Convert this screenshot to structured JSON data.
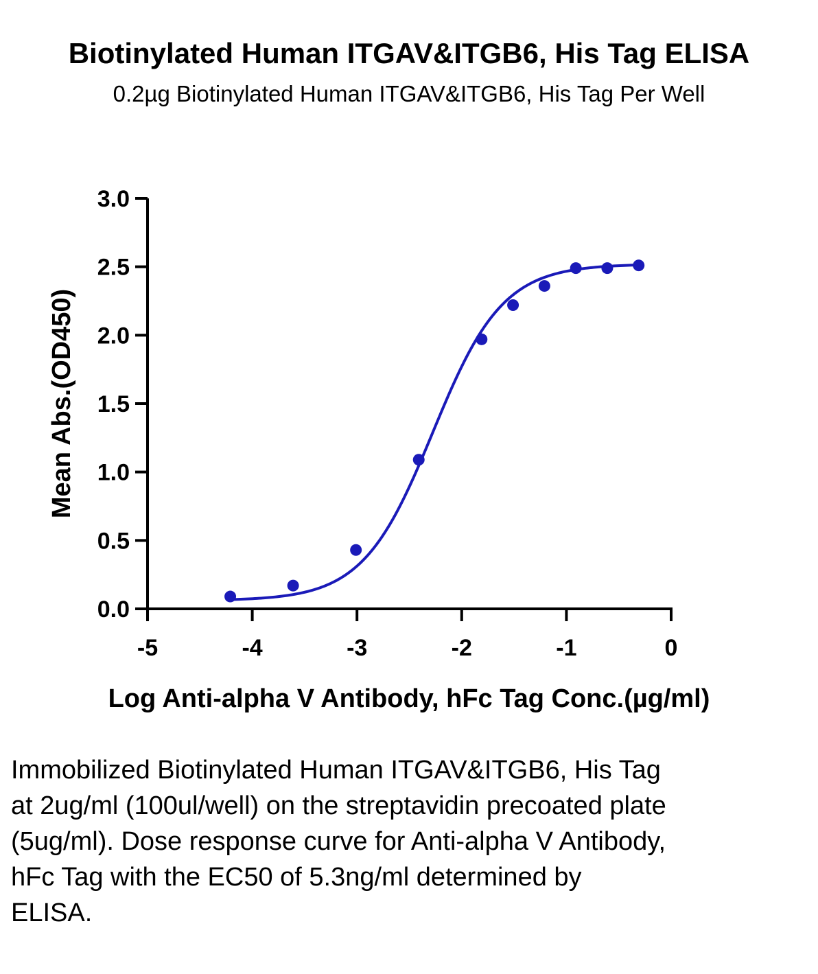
{
  "chart_data": {
    "type": "scatter",
    "title": "Biotinylated Human ITGAV&ITGB6, His Tag ELISA",
    "subtitle": "0.2µg Biotinylated Human ITGAV&ITGB6, His Tag Per Well",
    "xlabel": "Log Anti-alpha V Antibody, hFc Tag Conc.(µg/ml)",
    "ylabel": "Mean Abs.(OD450)",
    "xlim": [
      -5,
      0
    ],
    "ylim": [
      0,
      3.0
    ],
    "xticks": [
      -5,
      -4,
      -3,
      -2,
      -1,
      0
    ],
    "xtick_labels": [
      "-5",
      "-4",
      "-3",
      "-2",
      "-1",
      "0"
    ],
    "yticks": [
      0,
      0.5,
      1.0,
      1.5,
      2.0,
      2.5,
      3.0
    ],
    "ytick_labels": [
      "0.0",
      "0.5",
      "1.0",
      "1.5",
      "2.0",
      "2.5",
      "3.0"
    ],
    "grid": false,
    "legend": "none",
    "series": [
      {
        "color": "#1a1ab8",
        "x": [
          -4.21,
          -3.61,
          -3.01,
          -2.41,
          -1.81,
          -1.51,
          -1.21,
          -0.91,
          -0.61,
          -0.31
        ],
        "y": [
          0.09,
          0.17,
          0.43,
          1.09,
          1.97,
          2.22,
          2.36,
          2.49,
          2.49,
          2.51
        ]
      }
    ],
    "curve_color": "#1a1ab8"
  },
  "caption": "Immobilized Biotinylated Human ITGAV&ITGB6, His Tag at 2ug/ml (100ul/well) on the streptavidin precoated plate (5ug/ml). Dose response curve for Anti-alpha V Antibody, hFc Tag with the EC50 of 5.3ng/ml determined by ELISA."
}
